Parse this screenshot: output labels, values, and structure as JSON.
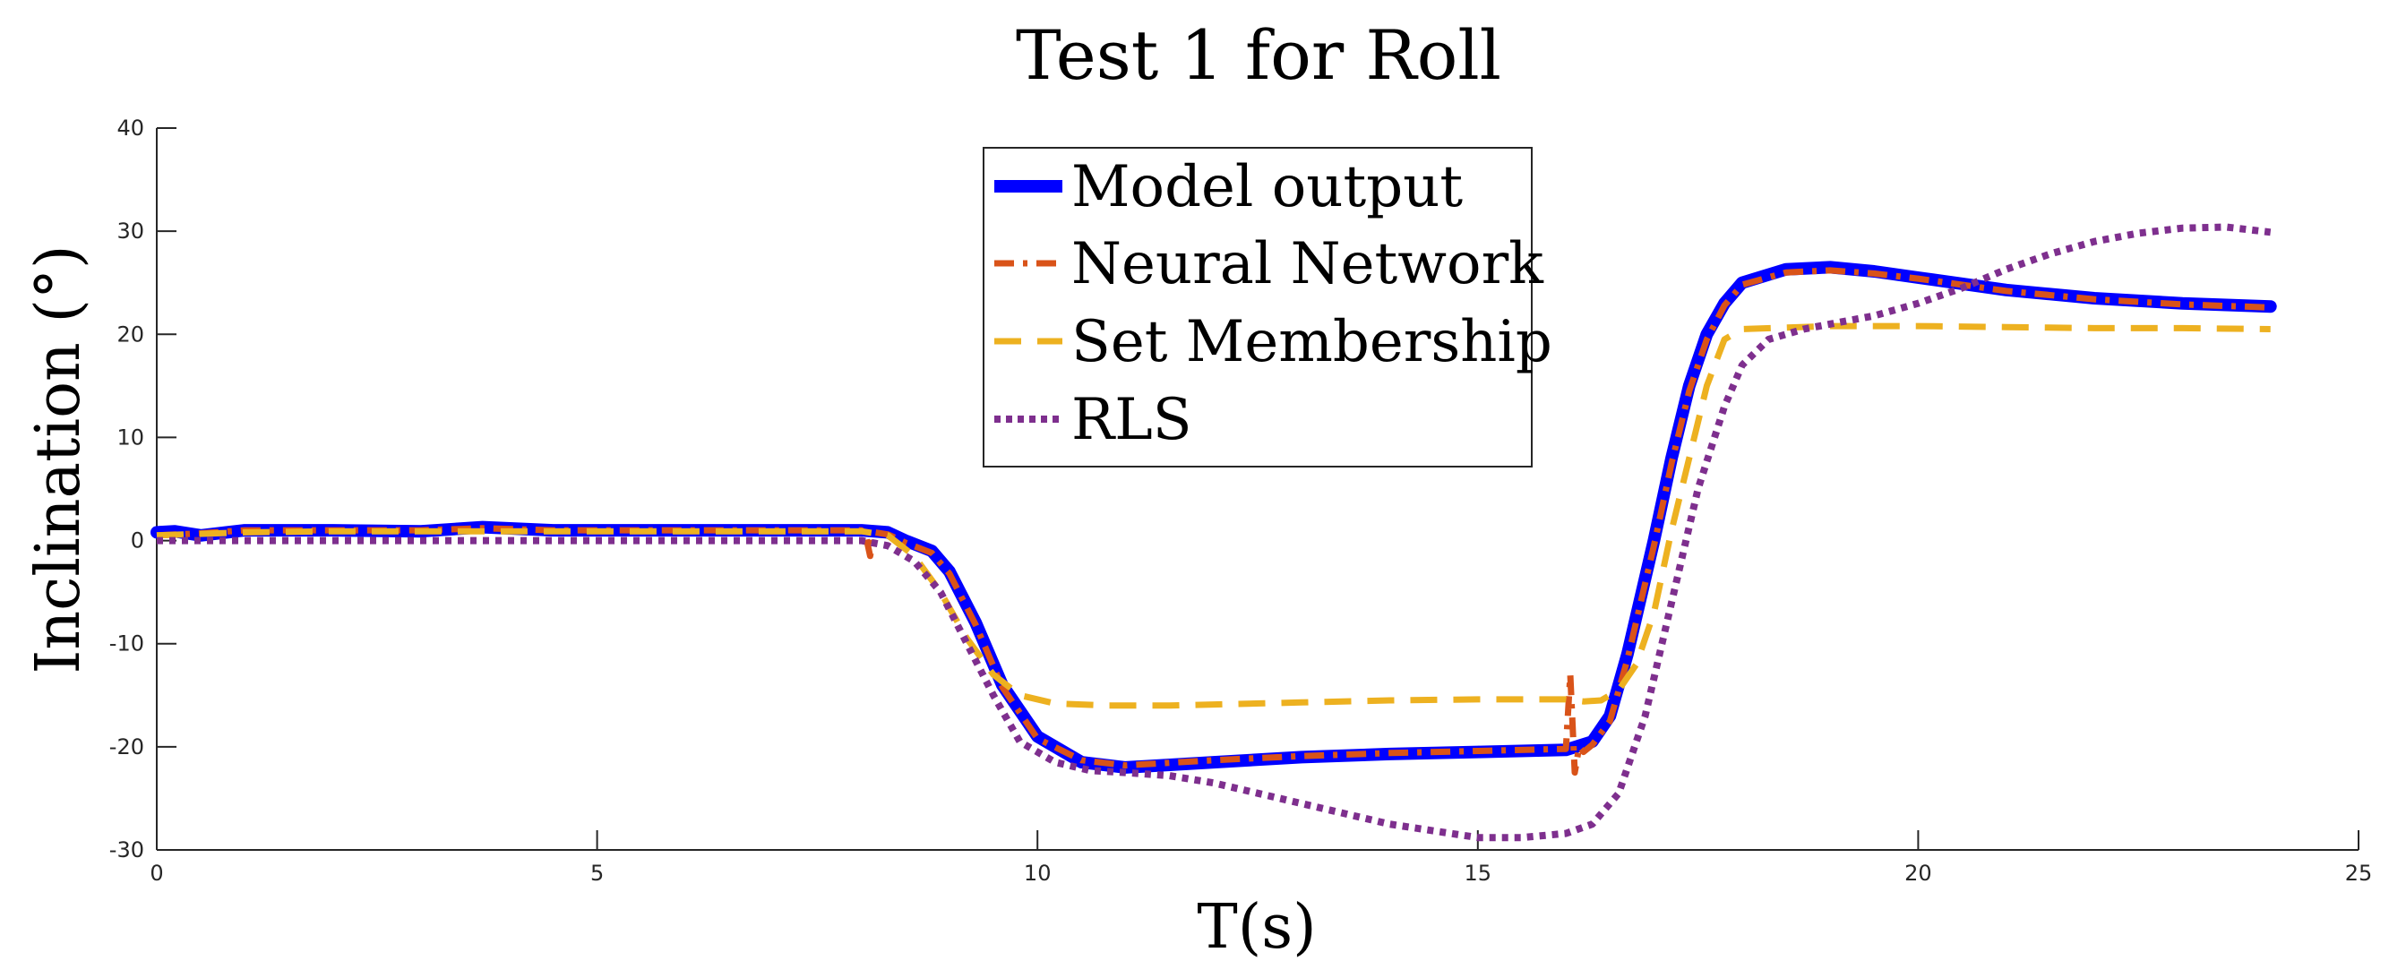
{
  "chart_data": {
    "type": "line",
    "title": "Test 1 for Roll",
    "xlabel": "T(s)",
    "ylabel": "Inclination (°)",
    "xlim": [
      0,
      25
    ],
    "ylim": [
      -30,
      40
    ],
    "xticks": [
      0,
      5,
      10,
      15,
      20,
      25
    ],
    "yticks": [
      -30,
      -20,
      -10,
      0,
      10,
      20,
      30,
      40
    ],
    "legend_position": "top-center",
    "grid": false,
    "series": [
      {
        "name": "Model output",
        "color": "#0000ff",
        "style": "solid",
        "x": [
          0,
          0.2,
          0.5,
          1,
          2,
          3,
          3.7,
          4.5,
          6,
          7,
          8,
          8.3,
          8.5,
          8.8,
          9,
          9.3,
          9.6,
          10,
          10.5,
          11,
          12,
          13,
          14,
          15,
          16,
          16.3,
          16.5,
          16.7,
          17,
          17.2,
          17.4,
          17.6,
          17.8,
          18,
          18.5,
          19,
          19.5,
          20,
          21,
          22,
          23,
          24
        ],
        "y": [
          0.8,
          0.9,
          0.5,
          1.0,
          1.0,
          0.9,
          1.3,
          1.0,
          1.0,
          1.0,
          1.0,
          0.8,
          0,
          -1,
          -3,
          -8,
          -14,
          -19,
          -21.5,
          -22,
          -21.5,
          -21,
          -20.7,
          -20.5,
          -20.3,
          -19.5,
          -17,
          -11,
          0,
          8,
          15,
          20,
          23,
          25,
          26.3,
          26.5,
          26.1,
          25.5,
          24.3,
          23.5,
          23,
          22.7
        ]
      },
      {
        "name": "Neural Network",
        "color": "#d95319",
        "style": "dashdot",
        "x": [
          0,
          0.5,
          1,
          2,
          3,
          3.7,
          4.5,
          6,
          7,
          8,
          8.05,
          8.1,
          8.15,
          8.3,
          8.5,
          8.8,
          9,
          9.3,
          9.6,
          10,
          10.5,
          11,
          12,
          13,
          14,
          15,
          16,
          16.05,
          16.1,
          16.15,
          16.2,
          16.3,
          16.5,
          16.7,
          17,
          17.2,
          17.4,
          17.6,
          17.8,
          18,
          18.5,
          19,
          19.5,
          20,
          21,
          22,
          23,
          24
        ],
        "y": [
          0.5,
          0.7,
          1.0,
          1.0,
          1.0,
          1.2,
          1.0,
          1.0,
          1.0,
          1.0,
          0.5,
          -1.5,
          0.8,
          0.6,
          -0.2,
          -1.2,
          -3.2,
          -8.2,
          -14.2,
          -19.2,
          -21.3,
          -21.8,
          -21.3,
          -20.9,
          -20.6,
          -20.4,
          -20.2,
          -13,
          -22.5,
          -20,
          -20.5,
          -19.8,
          -17.5,
          -11.5,
          -0.5,
          7.5,
          14.5,
          19.5,
          22.8,
          24.8,
          26,
          26.2,
          25.9,
          25.4,
          24.2,
          23.4,
          22.9,
          22.6
        ]
      },
      {
        "name": "Set Membership",
        "color": "#edb120",
        "style": "dashed",
        "x": [
          0,
          1,
          2,
          3,
          4,
          5,
          6,
          7,
          8,
          8.3,
          8.6,
          8.9,
          9.2,
          9.5,
          9.8,
          10.2,
          10.8,
          11.5,
          12,
          13,
          14,
          15,
          16,
          16.2,
          16.4,
          16.6,
          16.8,
          17,
          17.2,
          17.4,
          17.6,
          17.8,
          18,
          19,
          20,
          21,
          22,
          23,
          24
        ],
        "y": [
          0.5,
          0.8,
          0.9,
          0.9,
          0.9,
          0.9,
          0.9,
          0.9,
          0.9,
          0.5,
          -1.5,
          -5,
          -9.5,
          -13,
          -15,
          -15.8,
          -16,
          -16,
          -15.9,
          -15.7,
          -15.5,
          -15.4,
          -15.4,
          -15.6,
          -15.5,
          -14.5,
          -12,
          -7,
          1,
          8,
          15,
          19.5,
          20.5,
          20.8,
          20.8,
          20.7,
          20.6,
          20.6,
          20.5
        ]
      },
      {
        "name": "RLS",
        "color": "#7e2f8e",
        "style": "dotted",
        "x": [
          0,
          1,
          2,
          3,
          4,
          5,
          6,
          7,
          8,
          8.3,
          8.6,
          8.9,
          9.2,
          9.5,
          9.8,
          10.2,
          10.6,
          11,
          11.5,
          12,
          13,
          14,
          15,
          15.5,
          16,
          16.3,
          16.6,
          16.9,
          17.2,
          17.5,
          17.8,
          18,
          18.3,
          18.7,
          19,
          19.5,
          20,
          20.5,
          21,
          21.5,
          22,
          22.5,
          23,
          23.5,
          24
        ],
        "y": [
          0,
          0,
          0,
          0,
          0,
          0,
          0,
          0,
          0,
          -0.5,
          -2,
          -5,
          -10,
          -15,
          -19.5,
          -21.5,
          -22.3,
          -22.5,
          -22.8,
          -23.5,
          -25.5,
          -27.5,
          -28.8,
          -28.8,
          -28.4,
          -27.5,
          -24.5,
          -17,
          -6,
          5,
          13,
          17,
          19.5,
          20.5,
          21,
          21.8,
          23,
          24.5,
          26.3,
          27.8,
          29,
          29.8,
          30.3,
          30.4,
          29.9
        ]
      }
    ]
  }
}
